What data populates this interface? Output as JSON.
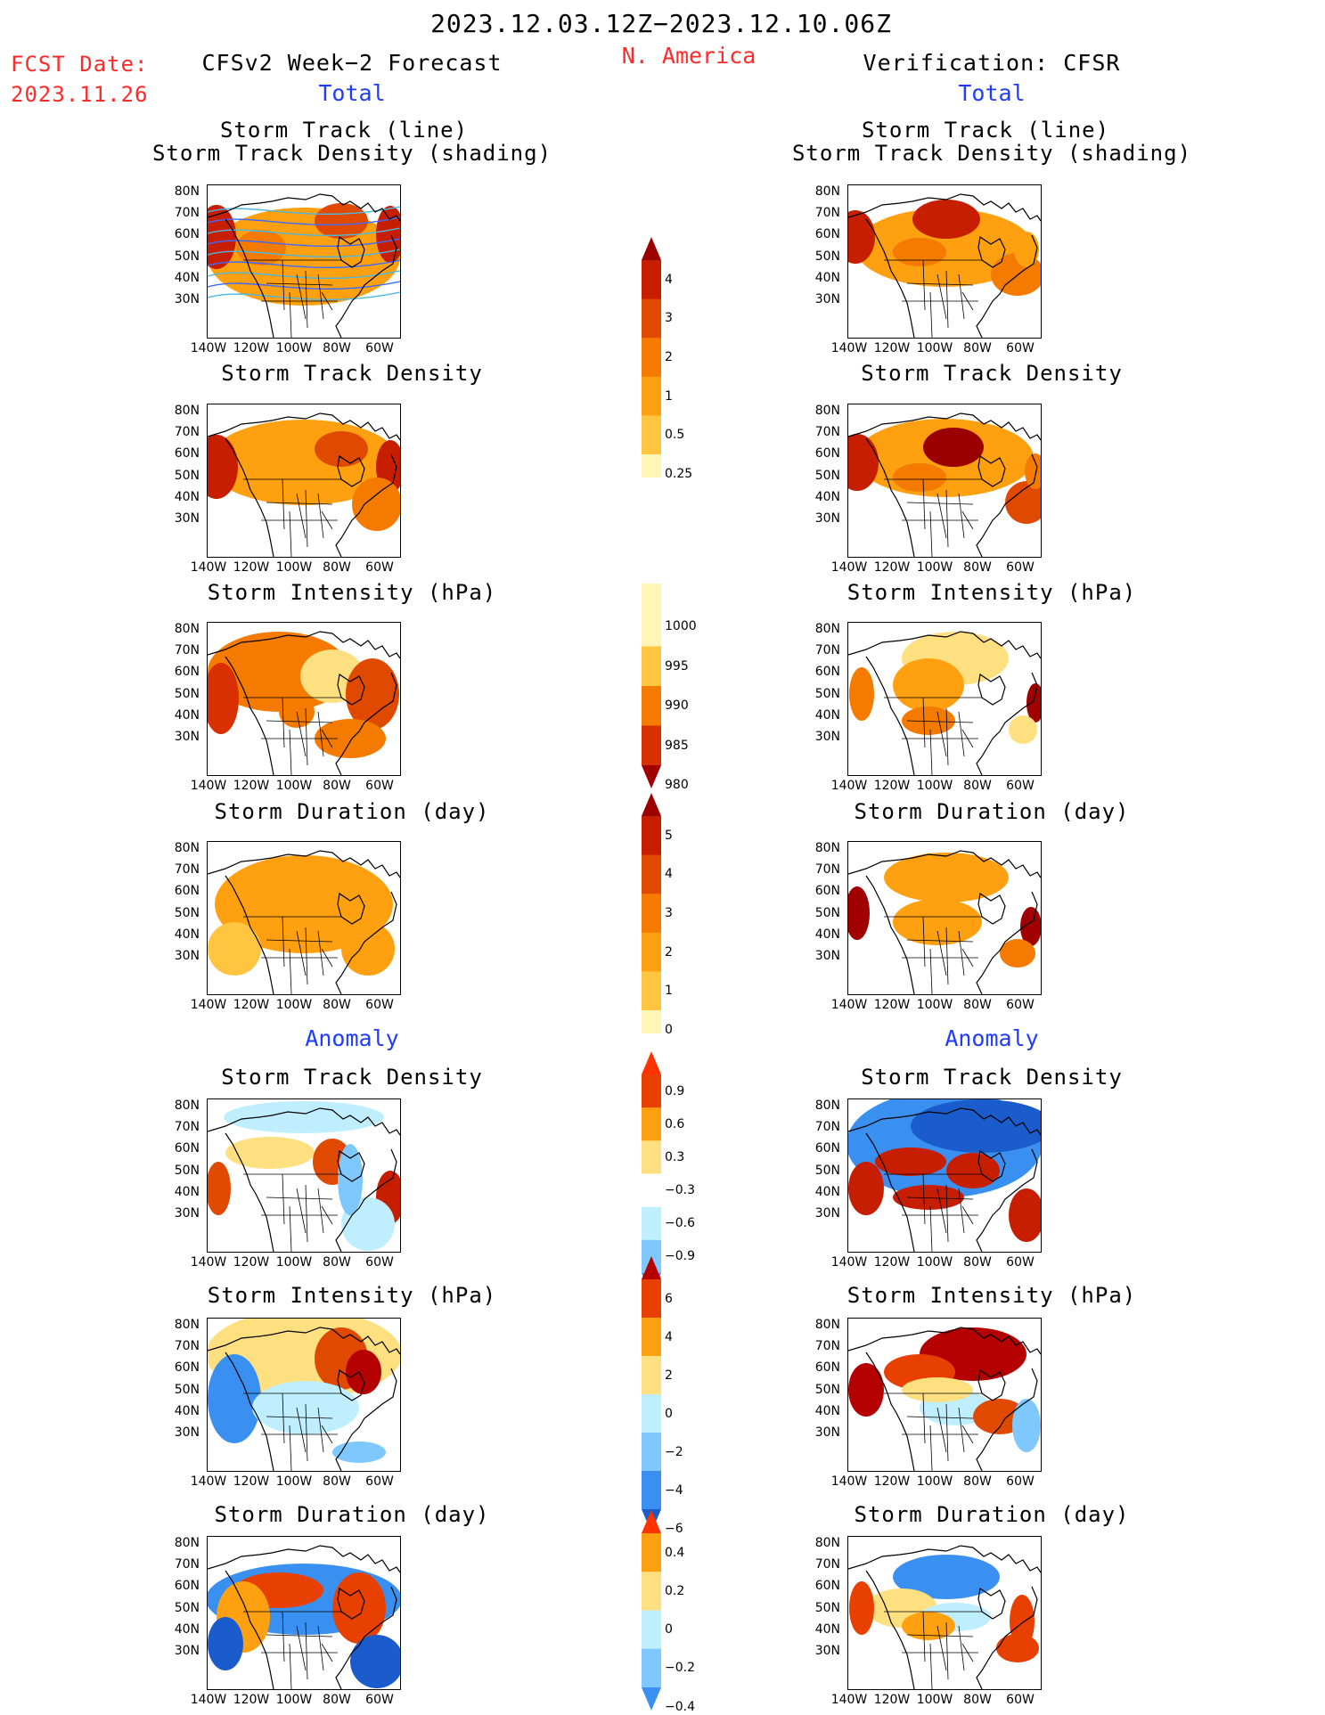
{
  "header": {
    "date_range": "2023.12.03.12Z−2023.12.10.06Z",
    "region": "N. America",
    "fcst_label": "FCST Date:",
    "fcst_date": "2023.11.26",
    "left_title": "CFSv2 Week−2 Forecast",
    "right_title": "Verification: CFSR",
    "total_label": "Total",
    "anomaly_label": "Anomaly"
  },
  "axes": {
    "lat_ticks": [
      "80N",
      "70N",
      "60N",
      "50N",
      "40N",
      "30N"
    ],
    "lon_ticks": [
      "140W",
      "120W",
      "100W",
      "80W",
      "60W"
    ]
  },
  "panel_titles": {
    "track_line": "Storm Track (line)",
    "track_density_shading": "Storm Track Density (shading)",
    "track_density": "Storm Track Density",
    "intensity": "Storm Intensity (hPa)",
    "duration": "Storm Duration (day)"
  },
  "colorbars": {
    "density": [
      "4",
      "3",
      "2",
      "1",
      "0.5",
      "0.25"
    ],
    "intensity": [
      "1000",
      "995",
      "990",
      "985",
      "980"
    ],
    "duration": [
      "5",
      "4",
      "3",
      "2",
      "1",
      "0"
    ],
    "density_anom": [
      "0.9",
      "0.6",
      "0.3",
      "−0.3",
      "−0.6",
      "−0.9"
    ],
    "intensity_anom": [
      "6",
      "4",
      "2",
      "0",
      "−2",
      "−4",
      "−6"
    ],
    "duration_anom": [
      "0.4",
      "0.2",
      "0",
      "−0.2",
      "−0.4"
    ]
  },
  "colors": {
    "warm": [
      "#fff5b8",
      "#ffe080",
      "#ffc440",
      "#ffa010",
      "#f47b00",
      "#e04a00",
      "#c81e00",
      "#9a0000"
    ],
    "intensity": [
      "#fff5b8",
      "#ffc440",
      "#f47b00",
      "#d83000",
      "#a00000"
    ],
    "anom_pos": [
      "#ffe080",
      "#ffa010",
      "#e84000",
      "#b40000"
    ],
    "anom_neg": [
      "#bfefff",
      "#7ec8ff",
      "#3a90f0",
      "#1a5ccc"
    ]
  }
}
